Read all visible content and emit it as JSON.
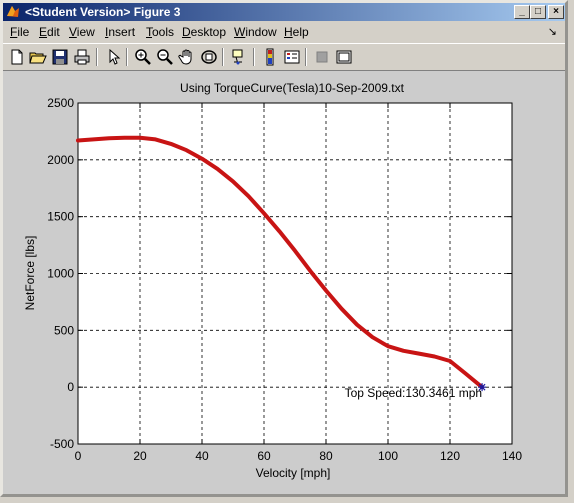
{
  "window": {
    "title": "<Student Version> Figure 3",
    "controls": [
      "_",
      "□",
      "×"
    ]
  },
  "menu": {
    "items": [
      {
        "label": "File",
        "key": "F"
      },
      {
        "label": "Edit",
        "key": "E"
      },
      {
        "label": "View",
        "key": "V"
      },
      {
        "label": "Insert",
        "key": "I"
      },
      {
        "label": "Tools",
        "key": "T"
      },
      {
        "label": "Desktop",
        "key": "D"
      },
      {
        "label": "Window",
        "key": "W"
      },
      {
        "label": "Help",
        "key": "H"
      }
    ],
    "dock_arrow": "↘"
  },
  "toolbar": {
    "icons": [
      "new-file-icon",
      "open-file-icon",
      "save-icon",
      "print-icon",
      "pointer-icon",
      "zoom-in-icon",
      "zoom-out-icon",
      "pan-hand-icon",
      "rotate-3d-icon",
      "data-cursor-icon",
      "colorbar-icon",
      "legend-icon",
      "hide-plot-tools-icon",
      "show-plot-tools-icon"
    ]
  },
  "chart_data": {
    "type": "line",
    "title": "Using TorqueCurve(Tesla)10-Sep-2009.txt",
    "xlabel": "Velocity [mph]",
    "ylabel": "NetForce [lbs]",
    "xlim": [
      0,
      140
    ],
    "ylim": [
      -500,
      2500
    ],
    "xticks": [
      "0",
      "20",
      "40",
      "60",
      "80",
      "100",
      "120",
      "140"
    ],
    "yticks": [
      "-500",
      "0",
      "500",
      "1000",
      "1500",
      "2000",
      "2500"
    ],
    "grid": true,
    "series": [
      {
        "color": "#c81414",
        "x": [
          0,
          5,
          10,
          15,
          20,
          25,
          30,
          35,
          40,
          45,
          50,
          55,
          60,
          65,
          70,
          75,
          80,
          85,
          90,
          95,
          100,
          105,
          110,
          115,
          120,
          125,
          130.3461
        ],
        "y": [
          2170,
          2180,
          2190,
          2195,
          2195,
          2180,
          2140,
          2085,
          2010,
          1920,
          1810,
          1680,
          1530,
          1370,
          1200,
          1020,
          850,
          690,
          550,
          440,
          360,
          320,
          295,
          270,
          230,
          120,
          0
        ]
      }
    ],
    "marker": {
      "x": 130.3461,
      "y": 0,
      "symbol": "*",
      "color": "#1a1aa0"
    },
    "annotation": {
      "text": "Top Speed:130.3461 mph",
      "x": 130.3461,
      "y": 0
    }
  }
}
